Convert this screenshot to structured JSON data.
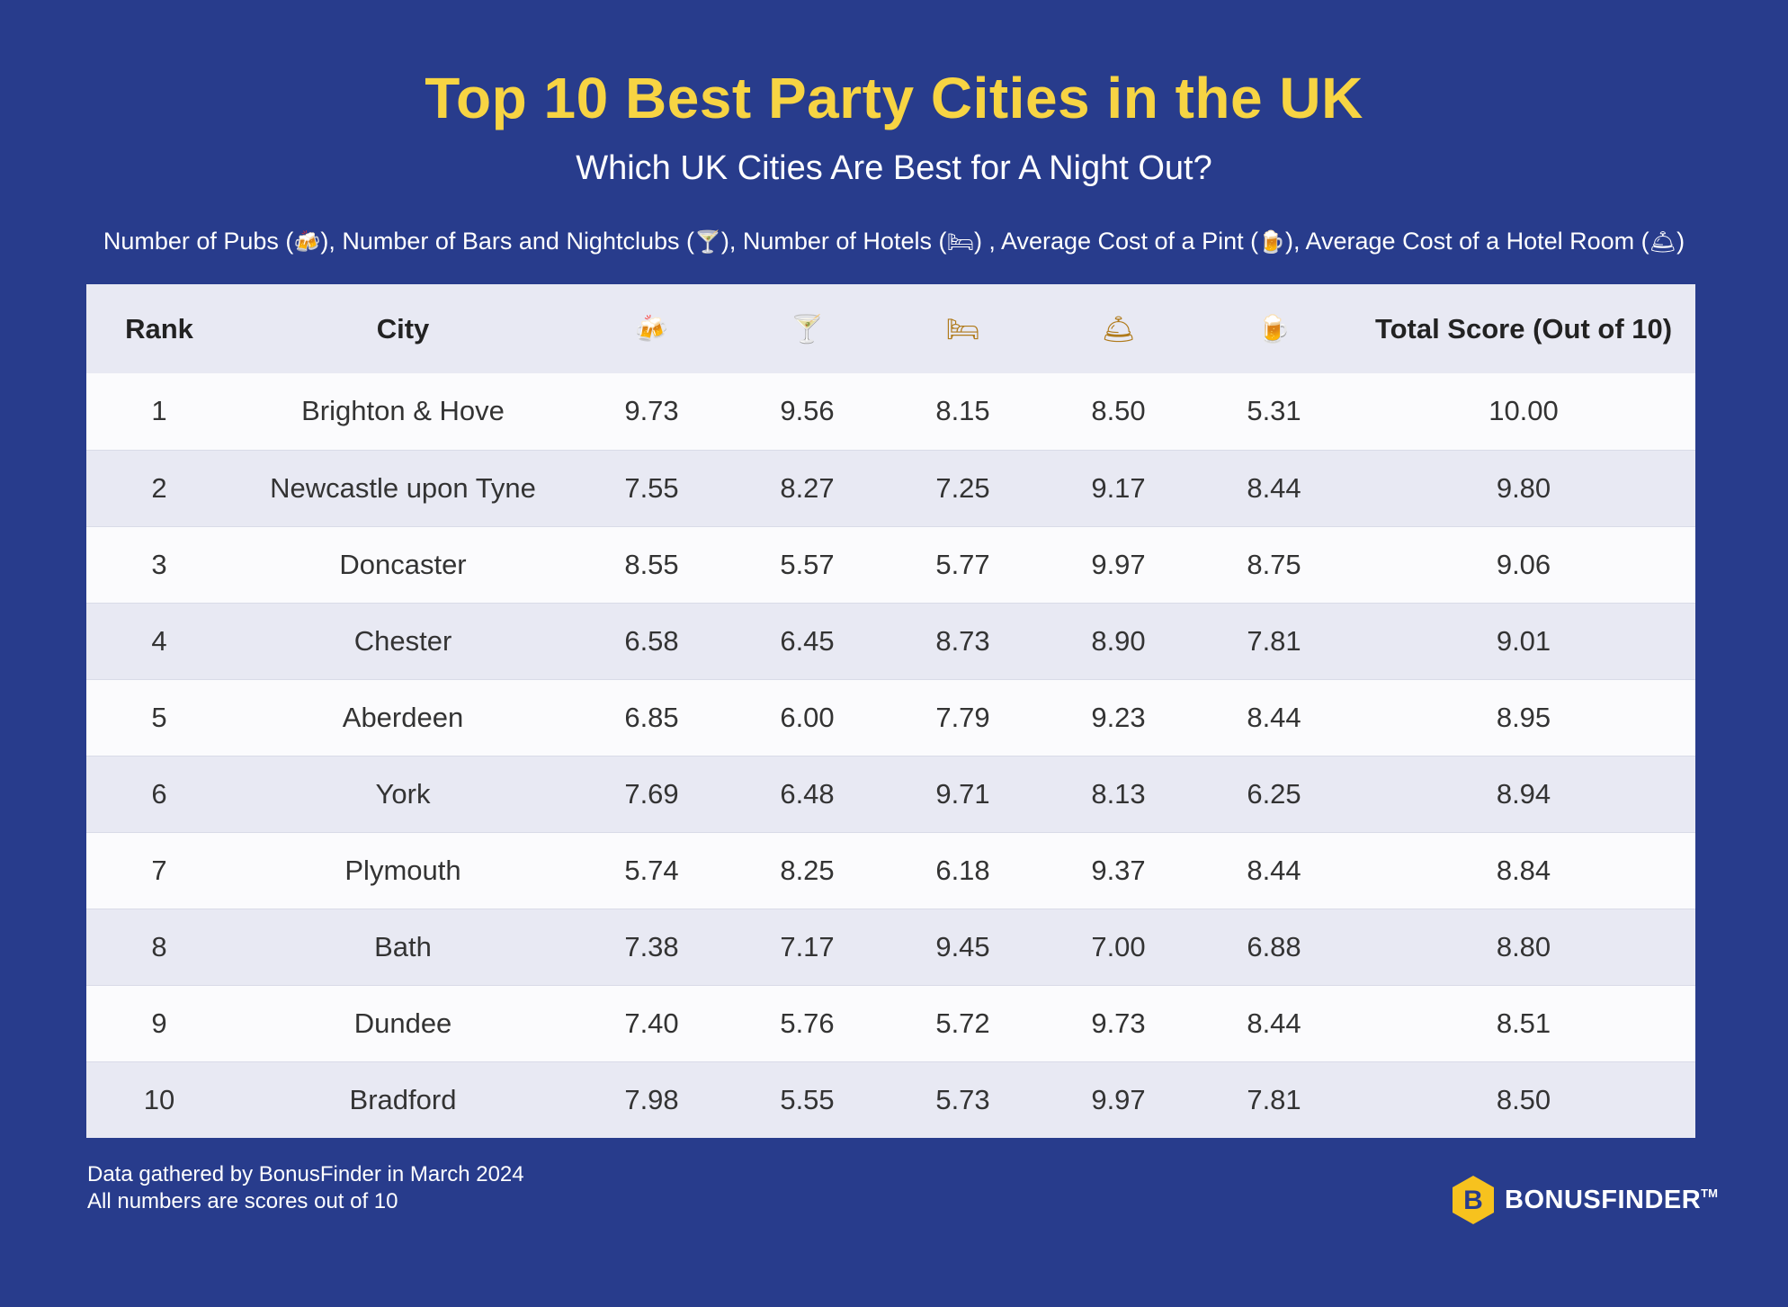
{
  "header": {
    "title": "Top 10 Best Party Cities in the UK",
    "subtitle": "Which UK Cities Are Best for A Night Out?"
  },
  "legend": {
    "pubs_label": "Number of Pubs (",
    "pubs_icon": "🍻",
    "bars_label": "), Number of Bars and Nightclubs (",
    "bars_icon": "🍸",
    "hotels_label": "),  Number of Hotels (",
    "hotels_icon": "🛏",
    "pint_label": ") , Average Cost of a Pint (",
    "pint_icon": "🍺",
    "room_label": "), Average Cost of a Hotel Room (",
    "room_icon": "🛎",
    "close": ")"
  },
  "chart_data": {
    "type": "table",
    "columns": {
      "rank": "Rank",
      "city": "City",
      "pubs_icon": "🍻",
      "bars_icon": "🍸",
      "hotels_icon": "🛏",
      "room_icon": "🛎",
      "pint_icon": "🍺",
      "total": "Total Score (Out of 10)"
    },
    "rows": [
      {
        "rank": "1",
        "city": "Brighton & Hove",
        "pubs": "9.73",
        "bars": "9.56",
        "hotels": "8.15",
        "room": "8.50",
        "pint": "5.31",
        "total": "10.00"
      },
      {
        "rank": "2",
        "city": "Newcastle upon Tyne",
        "pubs": "7.55",
        "bars": "8.27",
        "hotels": "7.25",
        "room": "9.17",
        "pint": "8.44",
        "total": "9.80"
      },
      {
        "rank": "3",
        "city": "Doncaster",
        "pubs": "8.55",
        "bars": "5.57",
        "hotels": "5.77",
        "room": "9.97",
        "pint": "8.75",
        "total": "9.06"
      },
      {
        "rank": "4",
        "city": "Chester",
        "pubs": "6.58",
        "bars": "6.45",
        "hotels": "8.73",
        "room": "8.90",
        "pint": "7.81",
        "total": "9.01"
      },
      {
        "rank": "5",
        "city": "Aberdeen",
        "pubs": "6.85",
        "bars": "6.00",
        "hotels": "7.79",
        "room": "9.23",
        "pint": "8.44",
        "total": "8.95"
      },
      {
        "rank": "6",
        "city": "York",
        "pubs": "7.69",
        "bars": "6.48",
        "hotels": "9.71",
        "room": "8.13",
        "pint": "6.25",
        "total": "8.94"
      },
      {
        "rank": "7",
        "city": "Plymouth",
        "pubs": "5.74",
        "bars": "8.25",
        "hotels": "6.18",
        "room": "9.37",
        "pint": "8.44",
        "total": "8.84"
      },
      {
        "rank": "8",
        "city": "Bath",
        "pubs": "7.38",
        "bars": "7.17",
        "hotels": "9.45",
        "room": "7.00",
        "pint": "6.88",
        "total": "8.80"
      },
      {
        "rank": "9",
        "city": "Dundee",
        "pubs": "7.40",
        "bars": "5.76",
        "hotels": "5.72",
        "room": "9.73",
        "pint": "8.44",
        "total": "8.51"
      },
      {
        "rank": "10",
        "city": "Bradford",
        "pubs": "7.98",
        "bars": "5.55",
        "hotels": "5.73",
        "room": "9.97",
        "pint": "7.81",
        "total": "8.50"
      }
    ]
  },
  "footer": {
    "note1": "Data gathered by BonusFinder in March 2024",
    "note2": "All numbers are scores out of 10",
    "logo_letter": "B",
    "brand": "BONUSFINDER",
    "tm": "TM"
  },
  "colors": {
    "background": "#283c8c",
    "title": "#f7d443",
    "row_alt": "#e8e9f3",
    "logo": "#f7c21e"
  }
}
